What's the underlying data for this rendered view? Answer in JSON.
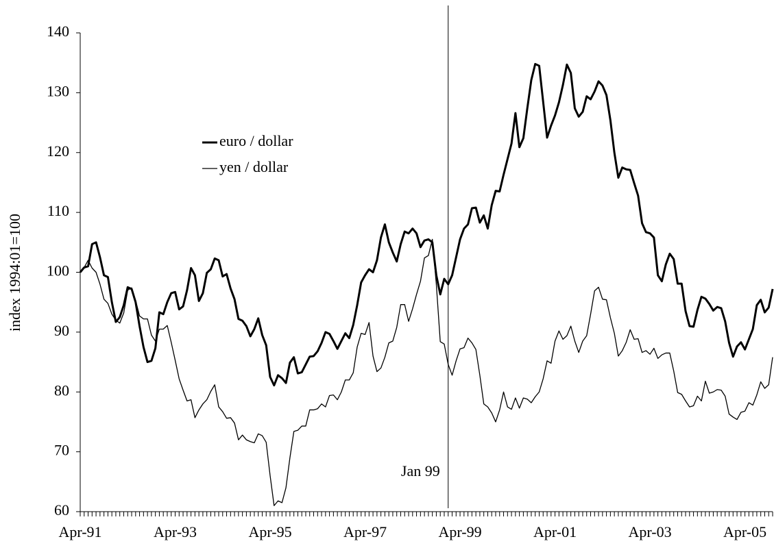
{
  "chart_data": {
    "type": "line",
    "y_label": "index 1994:01=100",
    "categories": [
      "Apr-91",
      null,
      null,
      null,
      null,
      null,
      null,
      null,
      null,
      null,
      null,
      null,
      null,
      null,
      null,
      null,
      null,
      null,
      null,
      null,
      null,
      null,
      null,
      null,
      "Apr-93",
      null,
      null,
      null,
      null,
      null,
      null,
      null,
      null,
      null,
      null,
      null,
      null,
      null,
      null,
      null,
      null,
      null,
      null,
      null,
      null,
      null,
      null,
      null,
      "Apr-95",
      null,
      null,
      null,
      null,
      null,
      null,
      null,
      null,
      null,
      null,
      null,
      null,
      null,
      null,
      null,
      null,
      null,
      null,
      null,
      null,
      null,
      null,
      null,
      "Apr-97",
      null,
      null,
      null,
      null,
      null,
      null,
      null,
      null,
      null,
      null,
      null,
      null,
      null,
      null,
      null,
      null,
      null,
      null,
      null,
      null,
      null,
      null,
      null,
      "Apr-99",
      null,
      null,
      null,
      null,
      null,
      null,
      null,
      null,
      null,
      null,
      null,
      null,
      null,
      null,
      null,
      null,
      null,
      null,
      null,
      null,
      null,
      null,
      null,
      "Apr-01",
      null,
      null,
      null,
      null,
      null,
      null,
      null,
      null,
      null,
      null,
      null,
      null,
      null,
      null,
      null,
      null,
      null,
      null,
      null,
      null,
      null,
      null,
      null,
      "Apr-03",
      null,
      null,
      null,
      null,
      null,
      null,
      null,
      null,
      null,
      null,
      null,
      null,
      null,
      null,
      null,
      null,
      null,
      null,
      null,
      null,
      null,
      null,
      null,
      "Apr-05",
      null,
      null,
      null,
      null,
      null,
      null,
      null
    ],
    "series": [
      {
        "name": "euro / dollar",
        "color": "#000000",
        "width": 3,
        "values": [
          100,
          100.8,
          101,
          104.7,
          105,
          102.5,
          99.5,
          99.2,
          95,
          91.7,
          92.5,
          94.5,
          97.5,
          97.2,
          95,
          91,
          87.5,
          85,
          85.2,
          87.3,
          93.3,
          93,
          95,
          96.5,
          96.7,
          93.8,
          94.3,
          97,
          100.7,
          99.5,
          95.2,
          96.5,
          99.9,
          100.5,
          102.3,
          102,
          99.3,
          99.7,
          97.3,
          95.5,
          92.2,
          91.9,
          91,
          89.3,
          90.5,
          92.3,
          89.5,
          87.8,
          82.5,
          81.1,
          82.8,
          82.3,
          81.5,
          84.9,
          85.8,
          83.1,
          83.3,
          84.6,
          85.9,
          86,
          86.8,
          88.2,
          90,
          89.7,
          88.5,
          87.2,
          88.5,
          89.8,
          89,
          91.2,
          94.5,
          98.3,
          99.5,
          100.5,
          100,
          102,
          105.8,
          108,
          105,
          103.3,
          101.8,
          104.7,
          106.8,
          106.5,
          107.3,
          106.5,
          104.2,
          105.3,
          105.5,
          105,
          99.5,
          96.3,
          98.9,
          98,
          99.5,
          102.5,
          105.5,
          107.3,
          108,
          110.7,
          110.8,
          108.3,
          109.5,
          107.3,
          111.2,
          113.6,
          113.5,
          116.3,
          118.9,
          121.5,
          126.6,
          120.9,
          122.4,
          127.4,
          132.1,
          134.8,
          134.5,
          128.5,
          122.5,
          124.5,
          126.2,
          128.4,
          131.3,
          134.7,
          133.3,
          127.4,
          126,
          126.8,
          129.4,
          128.9,
          130.2,
          131.9,
          131.2,
          129.6,
          125.4,
          120,
          115.8,
          117.5,
          117.2,
          117.1,
          114.9,
          112.8,
          108.2,
          106.7,
          106.5,
          105.8,
          99.5,
          98.5,
          101.3,
          103.1,
          102.2,
          98.1,
          98.1,
          93.5,
          91,
          90.9,
          93.7,
          95.9,
          95.6,
          94.7,
          93.6,
          94.2,
          94,
          91.8,
          88.2,
          85.9,
          87.6,
          88.3,
          87.1,
          88.8,
          90.5,
          94.5,
          95.4,
          93.3,
          94.1,
          97.2
        ]
      },
      {
        "name": "yen / dollar",
        "color": "#000000",
        "width": 1.3,
        "values": [
          100,
          100.8,
          102,
          100.7,
          100,
          98,
          95.5,
          94.8,
          93,
          92,
          91.5,
          93.2,
          97,
          97.4,
          95.3,
          92.7,
          92.2,
          92.2,
          89.5,
          88.5,
          90.5,
          90.5,
          91.1,
          88.3,
          85.3,
          82.2,
          80.3,
          78.5,
          78.7,
          75.7,
          77,
          78,
          78.7,
          80.1,
          81.2,
          77.5,
          76.7,
          75.6,
          75.7,
          74.8,
          72,
          72.8,
          72,
          71.7,
          71.5,
          73,
          72.7,
          71.6,
          66,
          61,
          61.8,
          61.5,
          64,
          69,
          73.4,
          73.6,
          74.3,
          74.3,
          77,
          77,
          77.2,
          78,
          77.5,
          79.4,
          79.5,
          78.7,
          80,
          82,
          82,
          83.2,
          87.5,
          89.8,
          89.6,
          91.6,
          86,
          83.4,
          84,
          85.8,
          88.2,
          88.5,
          90.8,
          94.6,
          94.6,
          91.8,
          93.9,
          96.3,
          98.5,
          102.4,
          102.8,
          105.5,
          98,
          88.4,
          88,
          84.6,
          82.8,
          85.2,
          87.2,
          87.4,
          89,
          88.2,
          87.1,
          82.8,
          78,
          77.5,
          76.5,
          75,
          77,
          80,
          77.5,
          77.1,
          79,
          77.3,
          79,
          78.8,
          78.2,
          79.2,
          80,
          82.2,
          85.2,
          84.8,
          88.5,
          90.2,
          88.8,
          89.4,
          91,
          88.5,
          86.6,
          88.5,
          89.4,
          93,
          96.9,
          97.5,
          95.5,
          95.4,
          92.4,
          89.8,
          86,
          86.9,
          88.3,
          90.4,
          88.8,
          88.9,
          86.6,
          86.9,
          86.3,
          87.3,
          85.6,
          86.2,
          86.5,
          86.5,
          83.5,
          79.9,
          79.6,
          78.5,
          77.5,
          77.7,
          79.3,
          78.5,
          81.8,
          79.8,
          80,
          80.4,
          80.3,
          79.3,
          76.3,
          75.8,
          75.4,
          76.6,
          76.8,
          78.2,
          77.8,
          79.5,
          81.7,
          80.6,
          81.2,
          85.8
        ]
      }
    ],
    "ylim": [
      60,
      140
    ],
    "yticks": [
      60,
      70,
      80,
      90,
      100,
      110,
      120,
      130,
      140
    ],
    "grid": false,
    "legend": "upper left",
    "annotations": [
      {
        "text": "Jan 99",
        "index": 93
      }
    ]
  }
}
